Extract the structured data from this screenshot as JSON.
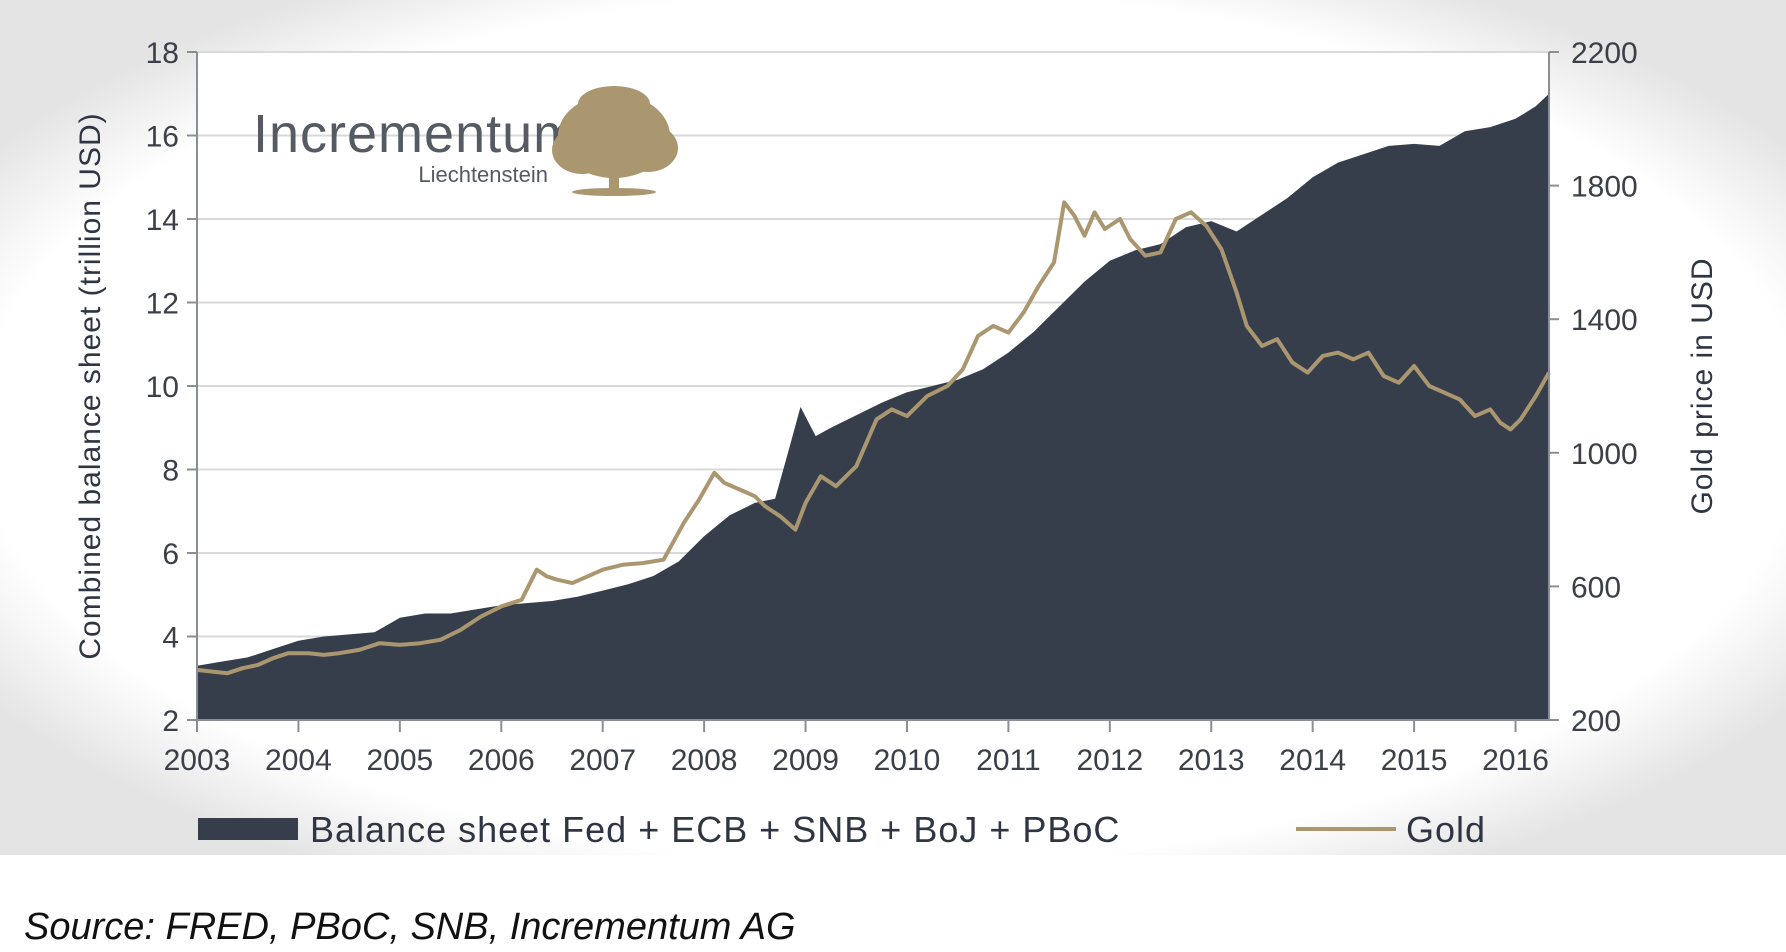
{
  "logo": {
    "name": "Incrementum",
    "subtitle": "Liechtenstein"
  },
  "source_note": "Source: FRED, PBoC, SNB, Incrementum AG",
  "colors": {
    "balance_fill": "#363e4c",
    "gold_line": "#aa9770",
    "grid": "#d9d9d9",
    "axis": "#8a8f96"
  },
  "chart_data": {
    "type": "area",
    "xlim": [
      2003.0,
      2016.33
    ],
    "x_ticks": [
      "2003",
      "2004",
      "2005",
      "2006",
      "2007",
      "2008",
      "2009",
      "2010",
      "2011",
      "2012",
      "2013",
      "2014",
      "2015",
      "2016"
    ],
    "left_axis": {
      "label": "Combined balance sheet (trillion USD)",
      "ylim": [
        2,
        18
      ],
      "ticks": [
        "2",
        "4",
        "6",
        "8",
        "10",
        "12",
        "14",
        "16",
        "18"
      ]
    },
    "right_axis": {
      "label": "Gold price in USD",
      "ylim": [
        200,
        2200
      ],
      "ticks": [
        "200",
        "600",
        "1000",
        "1400",
        "1800",
        "2200"
      ]
    },
    "grid": true,
    "legend_position": "bottom",
    "series": [
      {
        "name": "Balance sheet Fed + ECB + SNB + BoJ + PBoC",
        "kind": "area",
        "axis": "left",
        "x": [
          2003.0,
          2003.25,
          2003.5,
          2003.75,
          2004.0,
          2004.25,
          2004.5,
          2004.75,
          2005.0,
          2005.25,
          2005.5,
          2005.75,
          2006.0,
          2006.25,
          2006.5,
          2006.75,
          2007.0,
          2007.25,
          2007.5,
          2007.75,
          2008.0,
          2008.25,
          2008.5,
          2008.7,
          2008.85,
          2008.95,
          2009.1,
          2009.25,
          2009.5,
          2009.75,
          2010.0,
          2010.25,
          2010.5,
          2010.75,
          2011.0,
          2011.25,
          2011.5,
          2011.75,
          2012.0,
          2012.25,
          2012.5,
          2012.75,
          2013.0,
          2013.25,
          2013.5,
          2013.75,
          2014.0,
          2014.25,
          2014.5,
          2014.75,
          2015.0,
          2015.25,
          2015.5,
          2015.75,
          2016.0,
          2016.2,
          2016.33
        ],
        "values": [
          3.3,
          3.4,
          3.5,
          3.7,
          3.9,
          4.0,
          4.05,
          4.1,
          4.45,
          4.55,
          4.55,
          4.65,
          4.75,
          4.8,
          4.85,
          4.95,
          5.1,
          5.25,
          5.45,
          5.8,
          6.4,
          6.9,
          7.2,
          7.3,
          8.6,
          9.5,
          8.8,
          9.0,
          9.3,
          9.6,
          9.85,
          10.0,
          10.15,
          10.4,
          10.8,
          11.3,
          11.9,
          12.5,
          13.0,
          13.25,
          13.4,
          13.8,
          13.95,
          13.7,
          14.1,
          14.5,
          15.0,
          15.35,
          15.55,
          15.75,
          15.8,
          15.75,
          16.1,
          16.2,
          16.4,
          16.7,
          17.0
        ]
      },
      {
        "name": "Gold",
        "kind": "line",
        "axis": "right",
        "x": [
          2003.0,
          2003.15,
          2003.3,
          2003.45,
          2003.6,
          2003.75,
          2003.9,
          2004.1,
          2004.25,
          2004.4,
          2004.6,
          2004.8,
          2005.0,
          2005.2,
          2005.4,
          2005.6,
          2005.8,
          2006.0,
          2006.2,
          2006.35,
          2006.45,
          2006.55,
          2006.7,
          2006.85,
          2007.0,
          2007.2,
          2007.4,
          2007.6,
          2007.8,
          2007.95,
          2008.1,
          2008.2,
          2008.35,
          2008.5,
          2008.6,
          2008.75,
          2008.9,
          2009.0,
          2009.15,
          2009.3,
          2009.5,
          2009.7,
          2009.85,
          2010.0,
          2010.2,
          2010.4,
          2010.55,
          2010.7,
          2010.85,
          2011.0,
          2011.15,
          2011.3,
          2011.45,
          2011.55,
          2011.65,
          2011.75,
          2011.85,
          2011.95,
          2012.1,
          2012.2,
          2012.35,
          2012.5,
          2012.65,
          2012.8,
          2012.95,
          2013.1,
          2013.25,
          2013.35,
          2013.5,
          2013.65,
          2013.8,
          2013.95,
          2014.1,
          2014.25,
          2014.4,
          2014.55,
          2014.7,
          2014.85,
          2015.0,
          2015.15,
          2015.3,
          2015.45,
          2015.6,
          2015.75,
          2015.85,
          2015.95,
          2016.05,
          2016.2,
          2016.33
        ],
        "values": [
          350,
          345,
          340,
          355,
          365,
          385,
          400,
          400,
          395,
          400,
          410,
          430,
          425,
          430,
          440,
          470,
          510,
          540,
          560,
          650,
          630,
          620,
          610,
          630,
          650,
          665,
          670,
          680,
          790,
          860,
          940,
          910,
          890,
          870,
          840,
          810,
          770,
          850,
          930,
          900,
          960,
          1100,
          1130,
          1110,
          1170,
          1200,
          1250,
          1350,
          1380,
          1360,
          1420,
          1500,
          1570,
          1750,
          1710,
          1650,
          1720,
          1670,
          1700,
          1640,
          1590,
          1600,
          1700,
          1720,
          1680,
          1610,
          1480,
          1380,
          1320,
          1340,
          1270,
          1240,
          1290,
          1300,
          1280,
          1300,
          1230,
          1210,
          1260,
          1200,
          1180,
          1160,
          1110,
          1130,
          1090,
          1070,
          1100,
          1170,
          1240
        ]
      }
    ]
  }
}
